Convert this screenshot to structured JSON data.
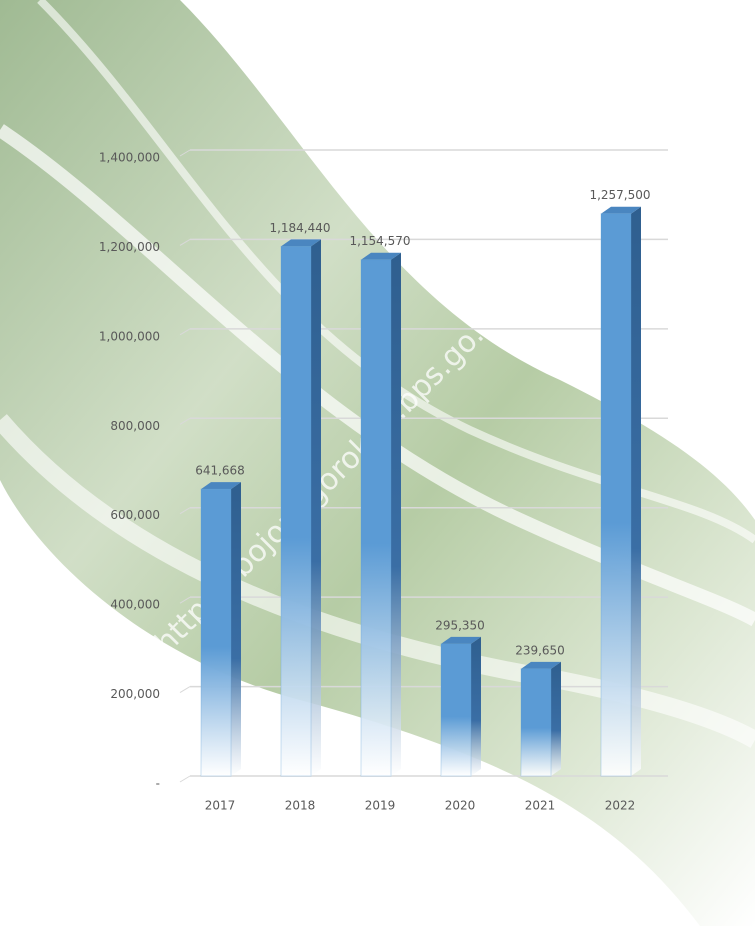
{
  "chart_data": {
    "type": "bar",
    "categories": [
      "2017",
      "2018",
      "2019",
      "2020",
      "2021",
      "2022"
    ],
    "values": [
      641668,
      1184440,
      1154570,
      295350,
      239650,
      1257500
    ],
    "value_labels": [
      "641,668",
      "1,184,440",
      "1,154,570",
      "295,350",
      "239,650",
      "1,257,500"
    ],
    "color": "#5b9bd5",
    "ylim": [
      0,
      1400000
    ],
    "yticks": [
      {
        "value": 0,
        "label": "-"
      },
      {
        "value": 200000,
        "label": "200,000"
      },
      {
        "value": 400000,
        "label": "400,000"
      },
      {
        "value": 600000,
        "label": "600,000"
      },
      {
        "value": 800000,
        "label": "800,000"
      },
      {
        "value": 1000000,
        "label": "1,000,000"
      },
      {
        "value": 1200000,
        "label": "1,200,000"
      },
      {
        "value": 1400000,
        "label": "1,400,000"
      }
    ],
    "grid": true,
    "watermark": "https://bojonegorokab.bps.go.id"
  }
}
